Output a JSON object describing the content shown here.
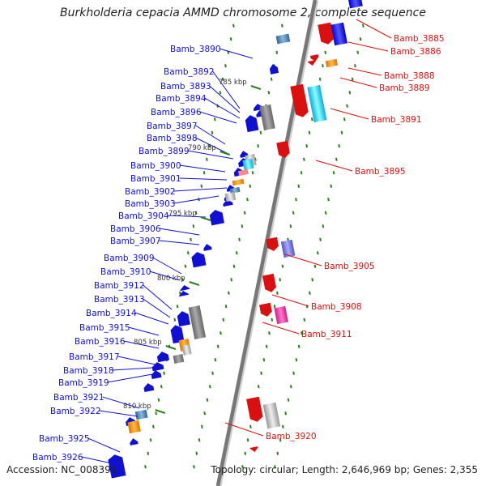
{
  "title": "Burkholderia cepacia AMMD chromosome 2, complete sequence",
  "accession_label": "Accession: NC_008391",
  "topology_label": "Topology: circular; Length: 2,646,969 bp; Genes: 2,355",
  "colors": {
    "forward": "#1010d0",
    "reverse": "#d81010",
    "backbone": "#888888",
    "tick": "#2e7d1e"
  },
  "kbp_marks": [
    "785 kbp",
    "790 kbp",
    "795 kbp",
    "800 kbp",
    "805 kbp",
    "810 kbp"
  ],
  "forward_genes": [
    "Bamb_3890",
    "Bamb_3892",
    "Bamb_3893",
    "Bamb_3894",
    "Bamb_3896",
    "Bamb_3897",
    "Bamb_3898",
    "Bamb_3899",
    "Bamb_3900",
    "Bamb_3901",
    "Bamb_3902",
    "Bamb_3903",
    "Bamb_3904",
    "Bamb_3906",
    "Bamb_3907",
    "Bamb_3909",
    "Bamb_3910",
    "Bamb_3912",
    "Bamb_3913",
    "Bamb_3914",
    "Bamb_3915",
    "Bamb_3916",
    "Bamb_3917",
    "Bamb_3918",
    "Bamb_3919",
    "Bamb_3921",
    "Bamb_3922",
    "Bamb_3925",
    "Bamb_3926"
  ],
  "reverse_genes": [
    "Bamb_3885",
    "Bamb_3886",
    "Bamb_3888",
    "Bamb_3889",
    "Bamb_3891",
    "Bamb_3895",
    "Bamb_3905",
    "Bamb_3908",
    "Bamb_3911",
    "Bamb_3920"
  ]
}
